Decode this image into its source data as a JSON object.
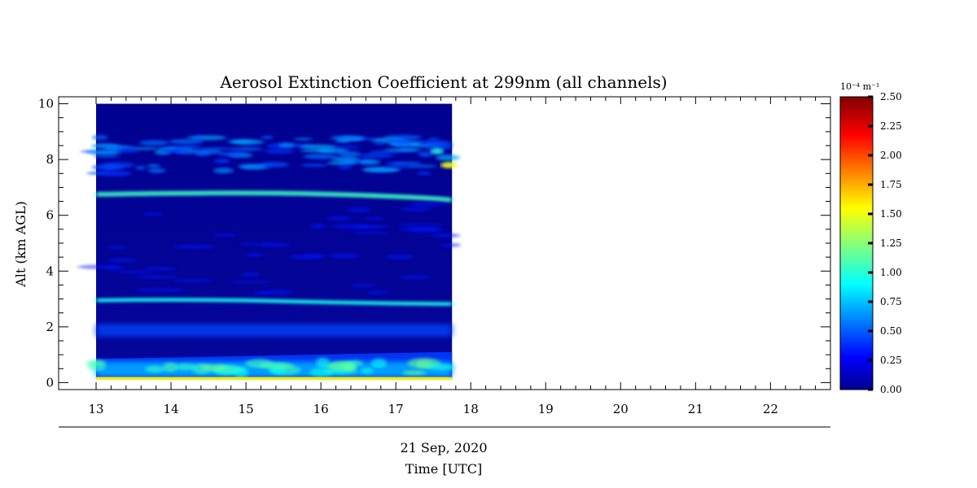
{
  "chart_data": {
    "type": "heatmap",
    "title": "Aerosol Extinction Coefficient at 299nm (all channels)",
    "ylabel": "Alt (km AGL)",
    "xlabel": "Time [UTC]",
    "date_label": "21 Sep, 2020",
    "x_ticks": [
      "13",
      "14",
      "15",
      "16",
      "17",
      "18",
      "19",
      "20",
      "21",
      "22"
    ],
    "y_ticks": [
      "0",
      "2",
      "4",
      "6",
      "8",
      "10"
    ],
    "xlim": [
      12.5,
      22.8
    ],
    "ylim": [
      -0.25,
      10.25
    ],
    "data_extent": {
      "t_start": 13.0,
      "t_end": 17.75,
      "alt_min": 0.1,
      "alt_max": 10.0
    },
    "colorbar": {
      "unit": "10⁻⁴ m⁻¹",
      "range": [
        0.0,
        2.5
      ],
      "ticks": [
        "2.50",
        "2.25",
        "2.00",
        "1.75",
        "1.50",
        "1.25",
        "1.00",
        "0.75",
        "0.50",
        "0.25",
        "0.00"
      ],
      "colormap": "jet"
    },
    "features": [
      {
        "label": "surface layer",
        "alt_km": [
          0.1,
          0.2
        ],
        "value": 1.6
      },
      {
        "label": "boundary layer",
        "alt_km": [
          0.2,
          1.1
        ],
        "value": 0.7
      },
      {
        "label": "layer near 1.9 km",
        "alt_km": 1.9,
        "value": 0.45
      },
      {
        "label": "thin layer near 2.9 km",
        "alt_km": 2.9,
        "value": 0.95
      },
      {
        "label": "thin layer near 6.8 km",
        "alt_km": 6.8,
        "value": 1.05
      },
      {
        "label": "upper layers",
        "alt_km": [
          7.5,
          8.8
        ],
        "value": 0.55
      }
    ]
  }
}
